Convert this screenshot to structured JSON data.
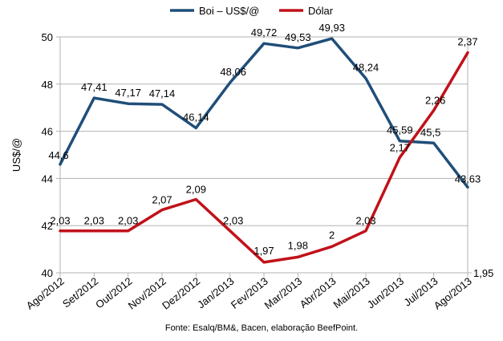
{
  "chart_data": {
    "type": "line",
    "ylabel": "US$/@",
    "source": "Fonte: Esalq/BM&, Bacen, elaboração BeefPoint.",
    "categories": [
      "Ago/2012",
      "Set/2012",
      "Out/2012",
      "Nov/2012",
      "Dez/2012",
      "Jan/2013",
      "Fev/2013",
      "Mar/2013",
      "Abr/2013",
      "Mai/2013",
      "Jun/2013",
      "Jul/2013",
      "Ago/2013"
    ],
    "left_axis": {
      "min": 40,
      "max": 50,
      "ticks": [
        "40",
        "42",
        "44",
        "46",
        "48",
        "50"
      ]
    },
    "right_axis": {
      "min": 1.95,
      "max": 2.4,
      "ticks": [
        "1,95"
      ]
    },
    "legend_position": "top",
    "gridlines": true,
    "series": [
      {
        "name": "Boi – US$/@",
        "axis": "left",
        "color": "#1f4e79",
        "values": [
          44.6,
          47.41,
          47.17,
          47.14,
          46.14,
          48.06,
          49.72,
          49.53,
          49.93,
          48.24,
          45.59,
          45.5,
          43.63
        ],
        "labels": [
          "44,6",
          "47,41",
          "47,17",
          "47,14",
          "46,14",
          "48,06",
          "49,72",
          "49,53",
          "49,93",
          "48,24",
          "45,59",
          "45,5",
          "43,63"
        ]
      },
      {
        "name": "Dólar",
        "axis": "right",
        "color": "#c0121a",
        "values": [
          2.03,
          2.03,
          2.03,
          2.07,
          2.09,
          2.03,
          1.97,
          1.98,
          2.0,
          2.03,
          2.17,
          2.26,
          2.37
        ],
        "labels": [
          "2,03",
          "2,03",
          "2,03",
          "2,07",
          "2,09",
          "2,03",
          "1,97",
          "1,98",
          "2",
          "2,03",
          "2,17",
          "2,26",
          "2,37"
        ]
      }
    ]
  }
}
